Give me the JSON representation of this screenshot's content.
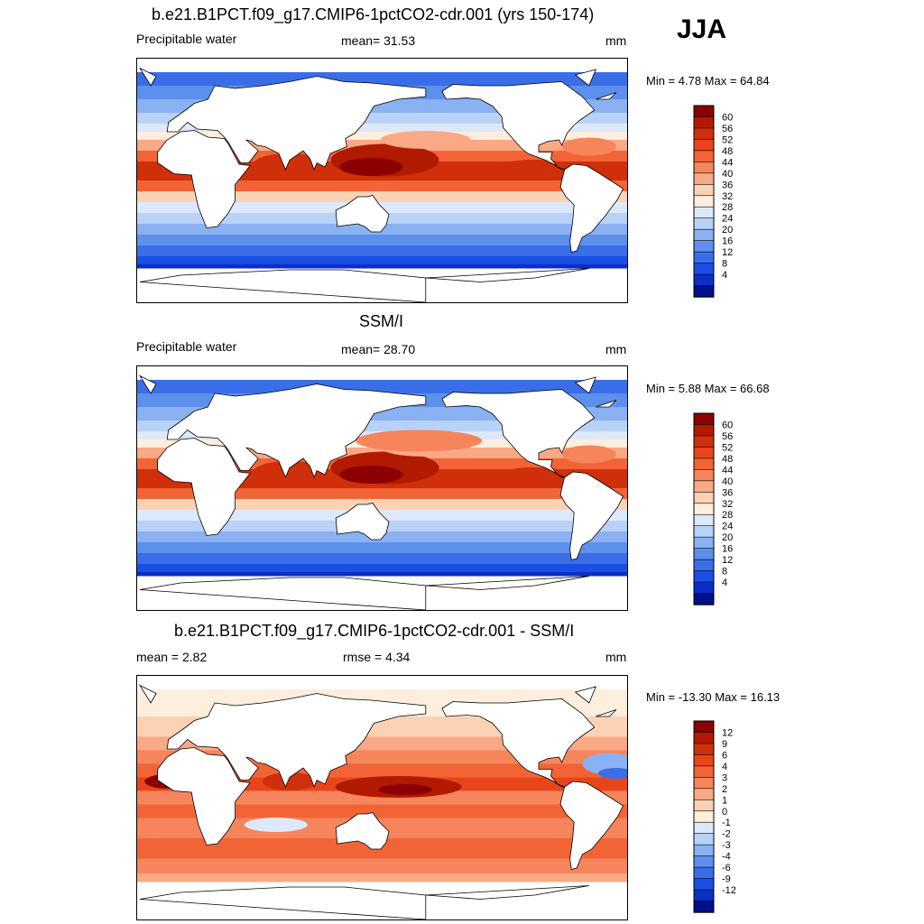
{
  "season": "JJA",
  "panels": [
    {
      "title": "b.e21.B1PCT.f09_g17.CMIP6-1pctCO2-cdr.001 (yrs 150-174)",
      "left_label": "Precipitable water",
      "center_label": "mean=  31.53",
      "units": "mm",
      "minmax": "Min =   4.78 Max =  64.84",
      "colorbar": {
        "labels": [
          "60",
          "56",
          "52",
          "48",
          "44",
          "40",
          "36",
          "32",
          "28",
          "24",
          "20",
          "16",
          "12",
          "8",
          "4"
        ],
        "colors": [
          "#8b0000",
          "#b21a00",
          "#cf2f0a",
          "#e8461a",
          "#f26436",
          "#f6855c",
          "#f9a985",
          "#fcd2b4",
          "#fdeedd",
          "#dde9fb",
          "#b9d2f8",
          "#8ab1f2",
          "#5d8fec",
          "#3a6ee8",
          "#1a4ee4",
          "#0a2fc8",
          "#000f8a"
        ]
      },
      "style": "pos_a"
    },
    {
      "title": "SSM/I",
      "left_label": "Precipitable water",
      "center_label": "mean=  28.70",
      "units": "mm",
      "minmax": "Min =   5.88 Max =  66.68",
      "colorbar": {
        "labels": [
          "60",
          "56",
          "52",
          "48",
          "44",
          "40",
          "36",
          "32",
          "28",
          "24",
          "20",
          "16",
          "12",
          "8",
          "4"
        ],
        "colors": [
          "#8b0000",
          "#b21a00",
          "#cf2f0a",
          "#e8461a",
          "#f26436",
          "#f6855c",
          "#f9a985",
          "#fcd2b4",
          "#fdeedd",
          "#dde9fb",
          "#b9d2f8",
          "#8ab1f2",
          "#5d8fec",
          "#3a6ee8",
          "#1a4ee4",
          "#0a2fc8",
          "#000f8a"
        ]
      },
      "style": "pos_b"
    },
    {
      "title": "b.e21.B1PCT.f09_g17.CMIP6-1pctCO2-cdr.001 - SSM/I",
      "left_label": "mean =   2.82",
      "center_label": "rmse =   4.34",
      "units": "mm",
      "minmax": "Min = -13.30 Max =  16.13",
      "colorbar": {
        "labels": [
          "12",
          "9",
          "6",
          "4",
          "3",
          "2",
          "1",
          "0",
          "-1",
          "-2",
          "-3",
          "-4",
          "-6",
          "-9",
          "-12"
        ],
        "colors": [
          "#8b0000",
          "#b21a00",
          "#cf2f0a",
          "#e8461a",
          "#f26436",
          "#f6855c",
          "#f9a985",
          "#fcd2b4",
          "#fdeedd",
          "#dde9fb",
          "#b9d2f8",
          "#8ab1f2",
          "#5d8fec",
          "#3a6ee8",
          "#1a4ee4",
          "#0a2fc8",
          "#000f8a"
        ]
      },
      "style": "diff"
    }
  ]
}
